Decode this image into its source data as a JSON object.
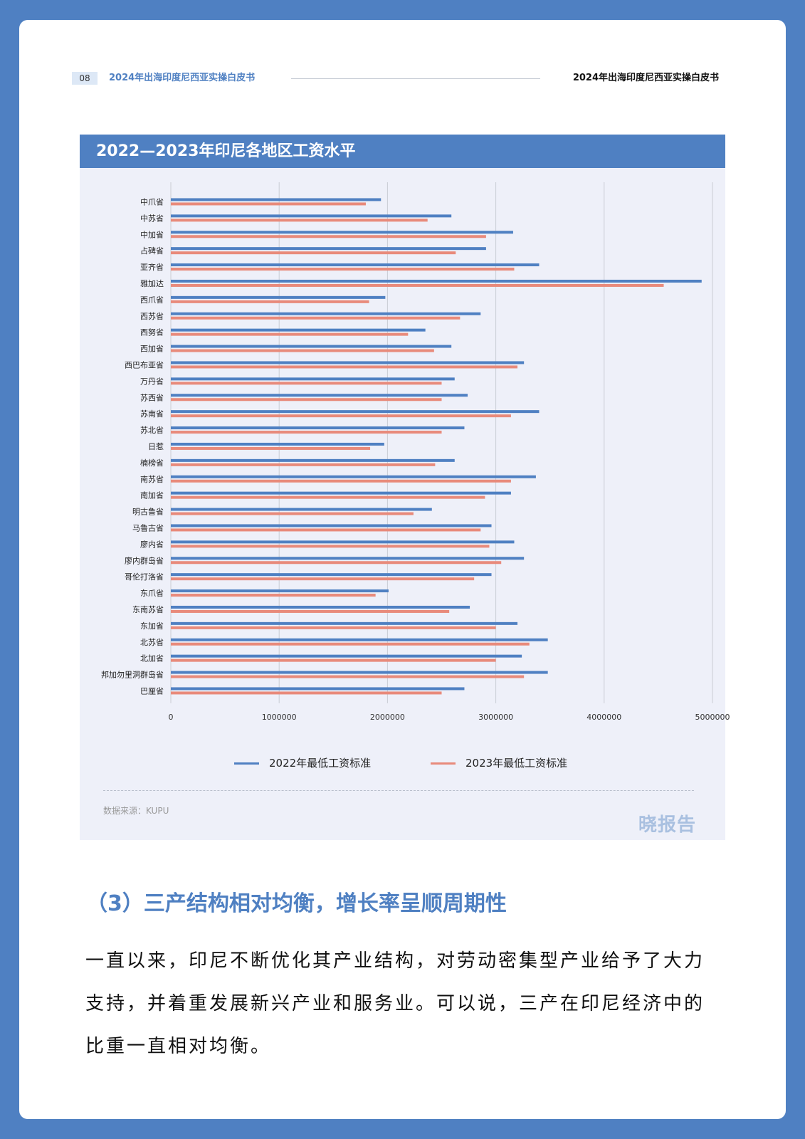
{
  "header": {
    "page_number": "08",
    "left_title": "2024年出海印度尼西亚实操白皮书",
    "right_title": "2024年出海印度尼西亚实操白皮书"
  },
  "figure": {
    "title": "2022—2023年印尼各地区工资水平",
    "source": "数据来源：KUPU",
    "watermark": "晓报告"
  },
  "colors": {
    "series_2022": "#4f80c2",
    "series_2023": "#e88a7b",
    "page_bg": "#4f80c2"
  },
  "chart_data": {
    "type": "bar",
    "orientation": "horizontal",
    "title": "",
    "categories": [
      "中爪省",
      "中苏省",
      "中加省",
      "占碑省",
      "亚齐省",
      "雅加达",
      "西爪省",
      "西苏省",
      "西努省",
      "西加省",
      "西巴布亚省",
      "万丹省",
      "苏西省",
      "苏南省",
      "苏北省",
      "日惹",
      "楠榜省",
      "南苏省",
      "南加省",
      "明古鲁省",
      "马鲁古省",
      "廖内省",
      "廖内群岛省",
      "哥伦打洛省",
      "东爪省",
      "东南苏省",
      "东加省",
      "北苏省",
      "北加省",
      "邦加勿里洞群岛省",
      "巴厘省"
    ],
    "series": [
      {
        "name": "2022年最低工资标准",
        "values": [
          1940000,
          2590000,
          3160000,
          2910000,
          3400000,
          4900000,
          1980000,
          2860000,
          2350000,
          2590000,
          3260000,
          2620000,
          2740000,
          3400000,
          2710000,
          1970000,
          2620000,
          3370000,
          3140000,
          2410000,
          2960000,
          3170000,
          3260000,
          2960000,
          2010000,
          2760000,
          3200000,
          3480000,
          3240000,
          3480000,
          2710000
        ]
      },
      {
        "name": "2023年最低工资标准",
        "values": [
          1800000,
          2370000,
          2910000,
          2630000,
          3170000,
          4550000,
          1830000,
          2670000,
          2190000,
          2430000,
          3200000,
          2500000,
          2500000,
          3140000,
          2500000,
          1840000,
          2440000,
          3140000,
          2900000,
          2240000,
          2860000,
          2940000,
          3050000,
          2800000,
          1890000,
          2570000,
          3000000,
          3310000,
          3000000,
          3260000,
          2500000
        ]
      }
    ],
    "xlim": [
      0,
      5000000
    ],
    "x_ticks": [
      "0",
      "1000000",
      "2000000",
      "3000000",
      "4000000",
      "5000000"
    ],
    "grid": "vertical",
    "legend_position": "bottom"
  },
  "section": {
    "heading": "（3）三产结构相对均衡，增长率呈顺周期性",
    "paragraph": "一直以来，印尼不断优化其产业结构，对劳动密集型产业给予了大力支持，并着重发展新兴产业和服务业。可以说，三产在印尼经济中的比重一直相对均衡。"
  }
}
